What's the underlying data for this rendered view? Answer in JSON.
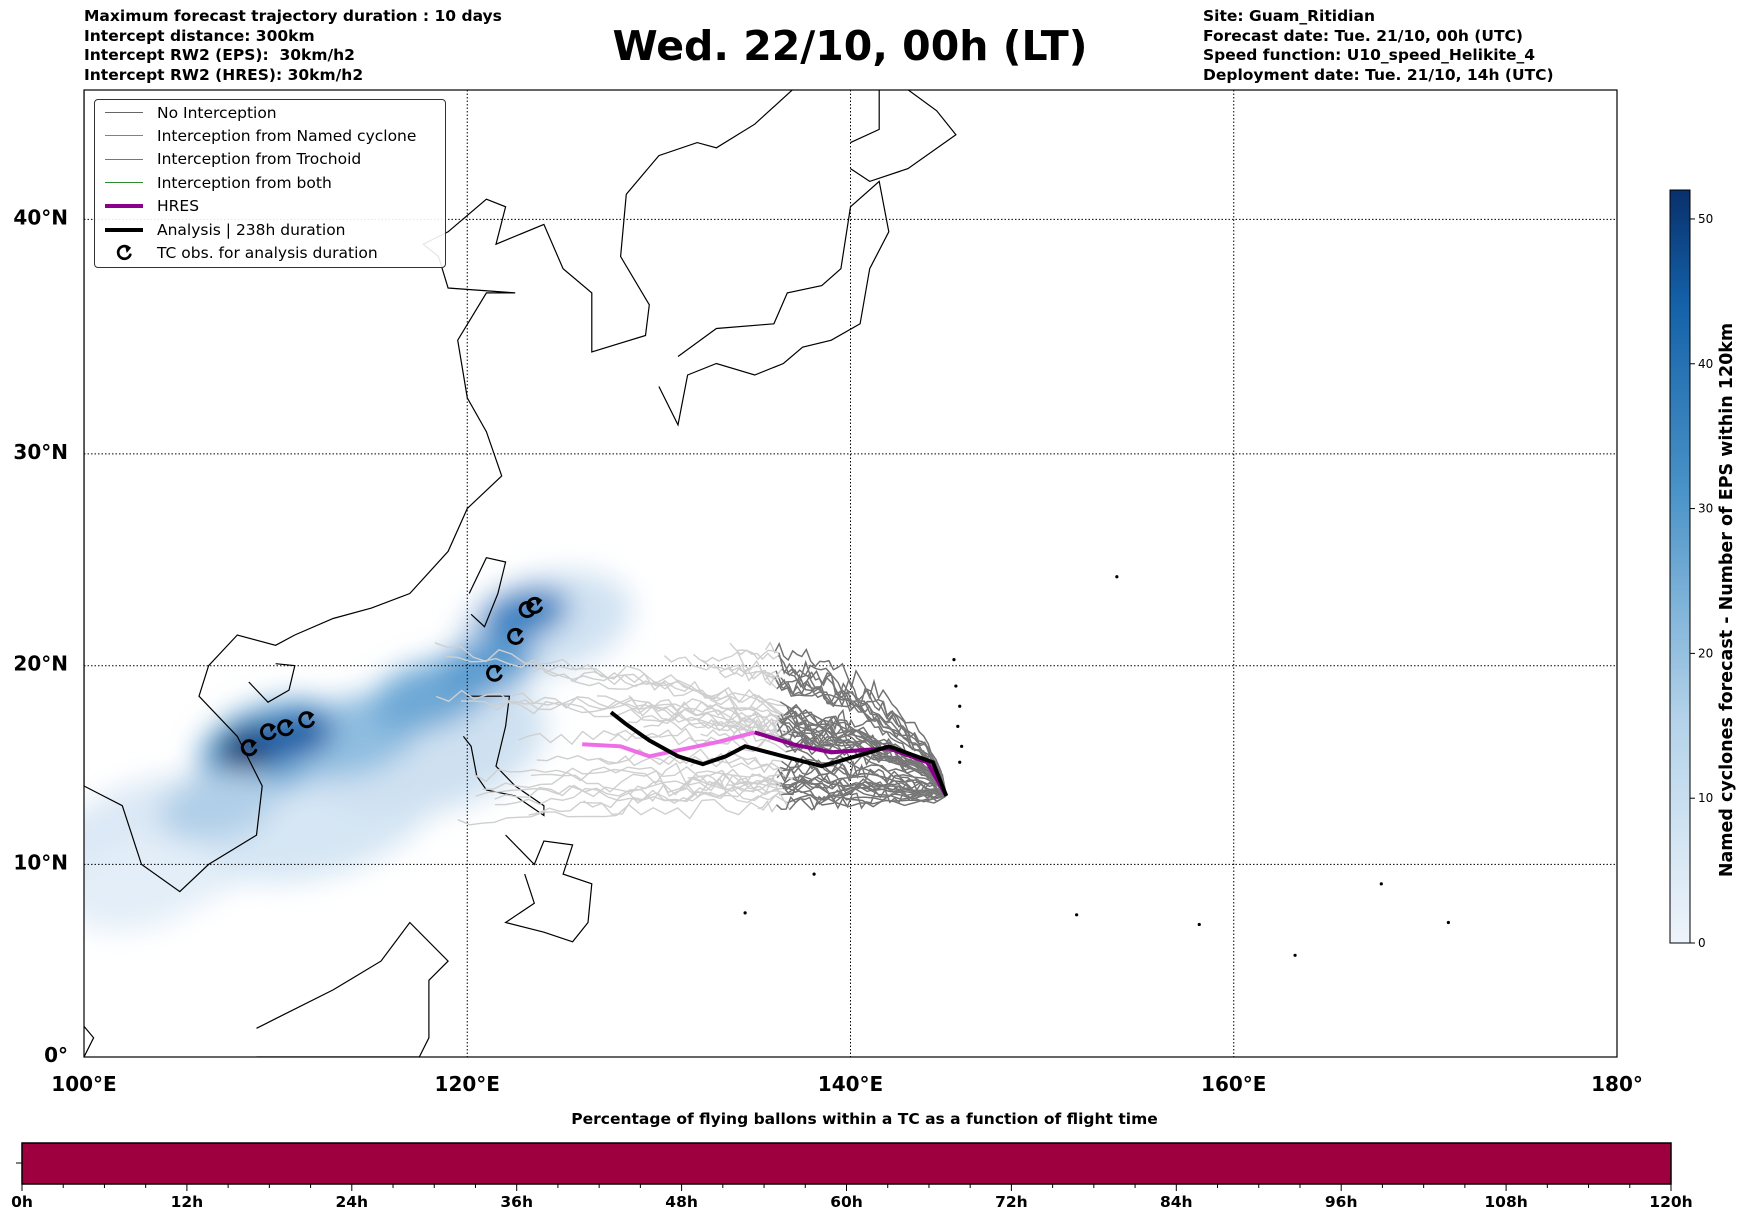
{
  "header": {
    "left": [
      "Maximum forecast trajectory duration : 10 days",
      "Intercept distance: 300km",
      "Intercept RW2 (EPS):  30km/h2",
      "Intercept RW2 (HRES): 30km/h2"
    ],
    "title": "Wed. 22/10, 00h (LT)",
    "right": [
      "Site: Guam_Ritidian",
      "Forecast date: Tue. 21/10, 00h (UTC)",
      "Speed function: U10_speed_Helikite_4",
      "Deployment date: Tue. 21/10, 14h (UTC)"
    ]
  },
  "legend": [
    {
      "label": "No Interception",
      "color": "#666666",
      "kind": "line"
    },
    {
      "label": "Interception from Named cyclone",
      "color": "#ff5a00",
      "kind": "line"
    },
    {
      "label": "Interception from Trochoid",
      "color": "#6b8e23",
      "kind": "line"
    },
    {
      "label": "Interception from both",
      "color": "#2e8b2e",
      "kind": "line"
    },
    {
      "label": "HRES",
      "color": "#8b008b",
      "kind": "thick"
    },
    {
      "label": "Analysis | 238h duration",
      "color": "#000000",
      "kind": "thick"
    },
    {
      "label": "TC obs. for analysis duration",
      "color": "#000000",
      "kind": "symbol"
    }
  ],
  "chart_data": [
    {
      "type": "line",
      "title": "Wed. 22/10, 00h (LT)",
      "projection": "mercator",
      "xlim": [
        100,
        180
      ],
      "ylim": [
        0,
        46
      ],
      "x_ticks": [
        100,
        120,
        140,
        160,
        180
      ],
      "x_tick_labels": [
        "100°E",
        "120°E",
        "140°E",
        "160°E",
        "180°"
      ],
      "y_ticks": [
        0,
        10,
        20,
        30,
        40
      ],
      "y_tick_labels": [
        "0°",
        "10°N",
        "20°N",
        "30°N",
        "40°N"
      ],
      "grid": true,
      "legend_position": "top-left",
      "site": {
        "lon": 145,
        "lat": 13.5
      },
      "analysis_track": [
        [
          145,
          13.5
        ],
        [
          144.3,
          15.2
        ],
        [
          142,
          16
        ],
        [
          141,
          15.7
        ],
        [
          138.5,
          15
        ],
        [
          136.5,
          15.5
        ],
        [
          134.5,
          16
        ],
        [
          133.5,
          15.5
        ],
        [
          132.3,
          15.1
        ],
        [
          131,
          15.5
        ],
        [
          129.5,
          16.3
        ],
        [
          128.3,
          17.1
        ],
        [
          127.5,
          17.7
        ]
      ],
      "hres_track": [
        [
          145,
          13.5
        ],
        [
          144,
          15.2
        ],
        [
          142,
          15.9
        ],
        [
          139,
          15.7
        ],
        [
          137,
          16.1
        ],
        [
          135,
          16.7
        ],
        [
          133,
          16.2
        ],
        [
          130.5,
          15.7
        ],
        [
          129.5,
          15.5
        ],
        [
          128,
          16
        ],
        [
          126,
          16.1
        ]
      ],
      "tc_obs": [
        [
          108.6,
          15.9
        ],
        [
          109.6,
          16.7
        ],
        [
          110.5,
          16.9
        ],
        [
          111.6,
          17.3
        ],
        [
          121.4,
          19.6
        ],
        [
          122.5,
          21.4
        ],
        [
          123.1,
          22.7
        ],
        [
          123.5,
          22.9
        ]
      ],
      "eps_member_count": 50
    },
    {
      "type": "heatmap",
      "colorbar_label": "Named cyclones forecast - Number of EPS within 120km",
      "colorbar_ticks": [
        0,
        10,
        20,
        30,
        40,
        50
      ],
      "range": [
        0,
        52
      ]
    },
    {
      "type": "bar",
      "title": "Percentage of flying ballons within a TC as a function of flight time",
      "x_tick_labels": [
        "0h",
        "12h",
        "24h",
        "36h",
        "48h",
        "60h",
        "72h",
        "84h",
        "96h",
        "108h",
        "120h"
      ],
      "xlim": [
        0,
        120
      ],
      "values_percent": [
        0
      ],
      "bar_color": "#9e003f"
    }
  ]
}
